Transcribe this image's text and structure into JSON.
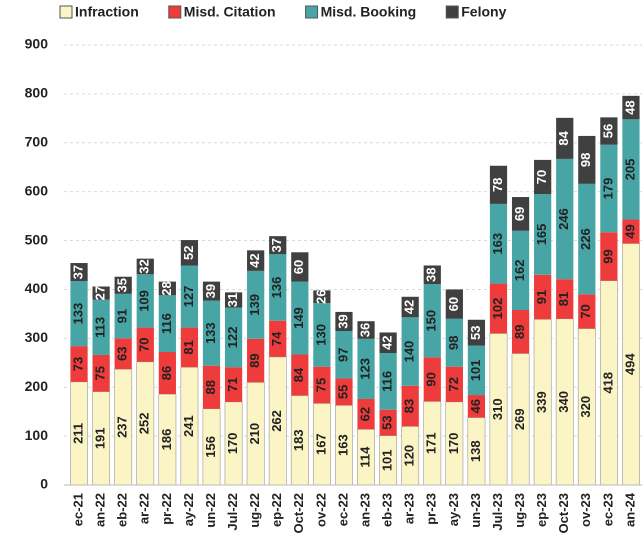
{
  "chart_data": {
    "type": "stacked_bar",
    "categories": [
      "ec-21",
      "an-22",
      "eb-22",
      "ar-22",
      "pr-22",
      "ay-22",
      "un-22",
      "Jul-22",
      "ug-22",
      "ep-22",
      "Oct-22",
      "ov-22",
      "ec-22",
      "an-23",
      "eb-23",
      "ar-23",
      "pr-23",
      "ay-23",
      "un-23",
      "Jul-23",
      "ug-23",
      "ep-23",
      "Oct-23",
      "ov-23",
      "ec-23",
      "an-24"
    ],
    "series": [
      {
        "name": "Infraction",
        "color": "#fbf5c6",
        "values": [
          211,
          191,
          237,
          252,
          186,
          241,
          156,
          170,
          210,
          262,
          183,
          167,
          163,
          114,
          101,
          120,
          171,
          170,
          138,
          310,
          269,
          339,
          340,
          320,
          418,
          494
        ]
      },
      {
        "name": "Misd. Citation",
        "color": "#ee3b3b",
        "values": [
          73,
          75,
          63,
          70,
          86,
          81,
          88,
          71,
          89,
          74,
          84,
          75,
          55,
          62,
          53,
          83,
          90,
          72,
          46,
          102,
          89,
          91,
          81,
          70,
          99,
          49
        ]
      },
      {
        "name": "Misd. Booking",
        "color": "#47a5a5",
        "values": [
          133,
          113,
          91,
          109,
          116,
          127,
          133,
          122,
          139,
          136,
          149,
          130,
          97,
          123,
          116,
          140,
          150,
          98,
          101,
          163,
          162,
          165,
          246,
          226,
          179,
          205
        ]
      },
      {
        "name": "Felony",
        "color": "#404040",
        "values": [
          37,
          27,
          35,
          32,
          28,
          52,
          39,
          31,
          42,
          37,
          60,
          26,
          39,
          36,
          42,
          42,
          38,
          60,
          53,
          78,
          69,
          70,
          84,
          98,
          56,
          48
        ]
      }
    ],
    "ylim": [
      0,
      900
    ],
    "yticks": [
      0,
      100,
      200,
      300,
      400,
      500,
      600,
      700,
      800,
      900
    ],
    "grid": true
  }
}
